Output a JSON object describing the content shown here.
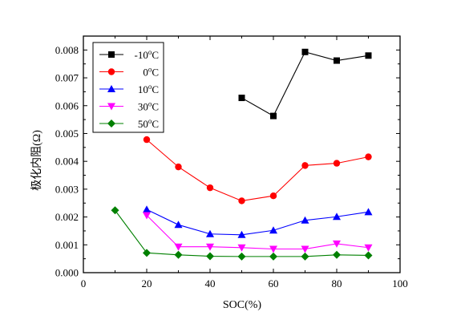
{
  "chart_data": {
    "type": "scatter",
    "xlabel": "SOC(%)",
    "ylabel": "极化内阻(Ω)",
    "xlim": [
      0,
      100
    ],
    "ylim": [
      0,
      0.0085
    ],
    "x_ticks": [
      0,
      20,
      40,
      60,
      80,
      100
    ],
    "x_tick_labels": [
      "0",
      "20",
      "40",
      "60",
      "80",
      "100"
    ],
    "y_ticks": [
      0,
      0.001,
      0.002,
      0.003,
      0.004,
      0.005,
      0.006,
      0.007,
      0.008
    ],
    "y_tick_labels": [
      "0.000",
      "0.001",
      "0.002",
      "0.003",
      "0.004",
      "0.005",
      "0.006",
      "0.007",
      "0.008"
    ],
    "grid": false,
    "legend_position": "top-left",
    "series": [
      {
        "name": "-10°C",
        "legend_value": "-10",
        "color": "#000000",
        "marker": "square",
        "x": [
          50,
          60,
          70,
          80,
          90
        ],
        "y": [
          0.00628,
          0.00563,
          0.00793,
          0.00762,
          0.0078
        ]
      },
      {
        "name": "0°C",
        "legend_value": "0",
        "color": "#ff0000",
        "marker": "circle",
        "x": [
          20,
          30,
          40,
          50,
          60,
          70,
          80,
          90
        ],
        "y": [
          0.00478,
          0.0038,
          0.00305,
          0.00258,
          0.00276,
          0.00385,
          0.00393,
          0.00416
        ]
      },
      {
        "name": "10°C",
        "legend_value": "10",
        "color": "#0000ff",
        "marker": "triangle-up",
        "x": [
          20,
          30,
          40,
          50,
          60,
          70,
          80,
          90
        ],
        "y": [
          0.00227,
          0.00172,
          0.00139,
          0.00136,
          0.00152,
          0.00188,
          0.00201,
          0.00218
        ]
      },
      {
        "name": "30°C",
        "legend_value": "30",
        "color": "#ff00ff",
        "marker": "triangle-down",
        "x": [
          20,
          30,
          40,
          50,
          60,
          70,
          80,
          90
        ],
        "y": [
          0.00206,
          0.00093,
          0.00093,
          0.0009,
          0.00085,
          0.00085,
          0.00104,
          0.0009
        ]
      },
      {
        "name": "50°C",
        "legend_value": "50",
        "color": "#008000",
        "marker": "diamond",
        "x": [
          10,
          20,
          30,
          40,
          50,
          60,
          70,
          80,
          90
        ],
        "y": [
          0.00224,
          0.00071,
          0.00064,
          0.00059,
          0.00058,
          0.00058,
          0.00058,
          0.00064,
          0.00062
        ]
      }
    ]
  }
}
